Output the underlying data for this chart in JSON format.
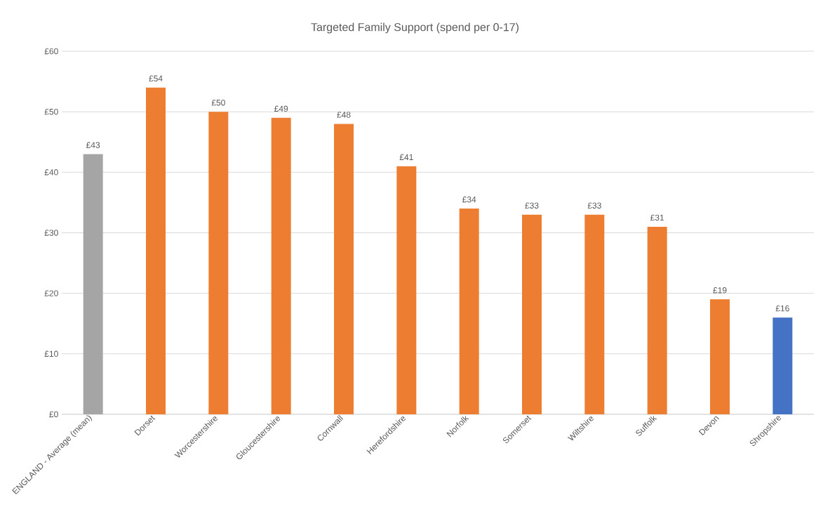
{
  "chart_data": {
    "type": "bar",
    "title": "Targeted Family Support (spend per 0-17)",
    "categories": [
      "ENGLAND - Average (mean)",
      "Dorset",
      "Worcestershire",
      "Gloucestershire",
      "Cornwall",
      "Herefordshire",
      "Norfolk",
      "Somerset",
      "Wiltshire",
      "Suffolk",
      "Devon",
      "Shropshire"
    ],
    "values": [
      43,
      54,
      50,
      49,
      48,
      41,
      34,
      33,
      33,
      31,
      19,
      16
    ],
    "colors": [
      "#a5a5a5",
      "#ed7d31",
      "#ed7d31",
      "#ed7d31",
      "#ed7d31",
      "#ed7d31",
      "#ed7d31",
      "#ed7d31",
      "#ed7d31",
      "#ed7d31",
      "#ed7d31",
      "#4472c4"
    ],
    "value_labels": [
      "£43",
      "£54",
      "£50",
      "£49",
      "£48",
      "£41",
      "£34",
      "£33",
      "£33",
      "£31",
      "£19",
      "£16"
    ],
    "ylim": [
      0,
      60
    ],
    "yticks": [
      {
        "value": 0,
        "label": "£0"
      },
      {
        "value": 10,
        "label": "£10"
      },
      {
        "value": 20,
        "label": "£20"
      },
      {
        "value": 30,
        "label": "£30"
      },
      {
        "value": 40,
        "label": "£40"
      },
      {
        "value": 50,
        "label": "£50"
      },
      {
        "value": 60,
        "label": "£60"
      }
    ],
    "grid": "y"
  }
}
